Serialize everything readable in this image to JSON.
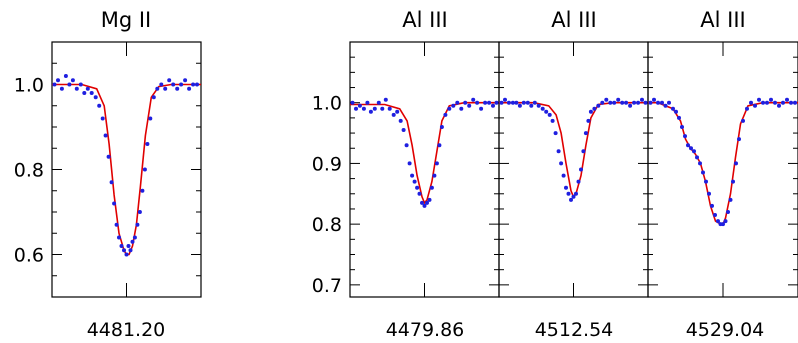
{
  "chart_data": [
    {
      "type": "line",
      "title": "Mg  II",
      "xlabel": "4481.20",
      "ylim": [
        0.5,
        1.1
      ],
      "yticks": [
        0.6,
        0.8,
        1.0
      ],
      "ytick_labels": [
        "0.6",
        "0.8",
        "1.0"
      ],
      "xrange": [
        -1.5,
        1.5
      ],
      "series": [
        {
          "role": "model",
          "color": "#e00000",
          "x": [
            -1.5,
            -0.9,
            -0.6,
            -0.45,
            -0.35,
            -0.25,
            -0.15,
            -0.05,
            0.0,
            0.05,
            0.12,
            0.2,
            0.28,
            0.38,
            0.5,
            0.65,
            0.9,
            1.5
          ],
          "y": [
            1.0,
            1.0,
            0.99,
            0.95,
            0.86,
            0.74,
            0.65,
            0.61,
            0.6,
            0.6,
            0.62,
            0.67,
            0.76,
            0.88,
            0.97,
            0.995,
            1.0,
            1.0
          ]
        },
        {
          "role": "data",
          "color": "#1f1fe0",
          "x": [
            -1.45,
            -1.38,
            -1.3,
            -1.22,
            -1.15,
            -1.08,
            -1.0,
            -0.92,
            -0.85,
            -0.78,
            -0.7,
            -0.62,
            -0.55,
            -0.48,
            -0.42,
            -0.36,
            -0.3,
            -0.25,
            -0.2,
            -0.15,
            -0.1,
            -0.05,
            0.0,
            0.04,
            0.08,
            0.12,
            0.17,
            0.22,
            0.27,
            0.32,
            0.37,
            0.42,
            0.48,
            0.55,
            0.62,
            0.7,
            0.78,
            0.86,
            0.94,
            1.02,
            1.1,
            1.18,
            1.26,
            1.34,
            1.42
          ],
          "y": [
            1.0,
            1.01,
            0.99,
            1.02,
            1.0,
            1.01,
            0.99,
            1.0,
            0.98,
            0.99,
            0.98,
            0.97,
            0.95,
            0.92,
            0.88,
            0.83,
            0.77,
            0.72,
            0.67,
            0.64,
            0.62,
            0.61,
            0.6,
            0.62,
            0.61,
            0.63,
            0.64,
            0.67,
            0.7,
            0.75,
            0.8,
            0.86,
            0.92,
            0.97,
            0.99,
            1.0,
            0.99,
            1.01,
            1.0,
            0.99,
            1.0,
            1.01,
            0.99,
            1.0,
            1.0
          ]
        }
      ]
    },
    {
      "type": "line",
      "title": "Al  III",
      "xlabel": "4479.86",
      "ylim": [
        0.68,
        1.1
      ],
      "yticks": [
        0.7,
        0.8,
        0.9,
        1.0
      ],
      "ytick_labels": [
        "0.7",
        "0.8",
        "0.9",
        "1.0"
      ],
      "xrange": [
        -1.5,
        1.5
      ],
      "series": [
        {
          "role": "model",
          "color": "#e00000",
          "x": [
            -1.5,
            -0.8,
            -0.5,
            -0.35,
            -0.25,
            -0.15,
            -0.05,
            0.0,
            0.05,
            0.15,
            0.25,
            0.35,
            0.5,
            0.8,
            1.5
          ],
          "y": [
            0.997,
            0.997,
            0.99,
            0.97,
            0.93,
            0.88,
            0.845,
            0.835,
            0.84,
            0.87,
            0.92,
            0.97,
            0.995,
            1.0,
            1.0
          ]
        },
        {
          "role": "data",
          "color": "#1f1fe0",
          "x": [
            -1.45,
            -1.38,
            -1.3,
            -1.22,
            -1.15,
            -1.08,
            -1.0,
            -0.92,
            -0.85,
            -0.78,
            -0.7,
            -0.62,
            -0.55,
            -0.48,
            -0.42,
            -0.36,
            -0.3,
            -0.25,
            -0.2,
            -0.15,
            -0.1,
            -0.05,
            0.0,
            0.05,
            0.1,
            0.15,
            0.2,
            0.25,
            0.3,
            0.35,
            0.42,
            0.5,
            0.58,
            0.66,
            0.74,
            0.82,
            0.9,
            0.98,
            1.06,
            1.14,
            1.22,
            1.3,
            1.38,
            1.45
          ],
          "y": [
            1.0,
            0.99,
            0.995,
            0.99,
            1.0,
            0.985,
            0.99,
            1.0,
            0.99,
            1.005,
            0.99,
            0.98,
            0.985,
            0.97,
            0.955,
            0.93,
            0.9,
            0.88,
            0.87,
            0.86,
            0.85,
            0.835,
            0.83,
            0.835,
            0.84,
            0.86,
            0.88,
            0.9,
            0.93,
            0.96,
            0.98,
            0.99,
            0.995,
            1.0,
            0.99,
            1.0,
            0.995,
            1.005,
            1.0,
            0.99,
            1.0,
            1.0,
            0.995,
            1.0
          ]
        }
      ]
    },
    {
      "type": "line",
      "title": "Al  III",
      "xlabel": "4512.54",
      "ylim": [
        0.68,
        1.1
      ],
      "xrange": [
        -1.5,
        1.5
      ],
      "series": [
        {
          "role": "model",
          "color": "#e00000",
          "x": [
            -1.5,
            -0.8,
            -0.5,
            -0.35,
            -0.25,
            -0.15,
            -0.05,
            0.0,
            0.05,
            0.15,
            0.25,
            0.35,
            0.5,
            0.8,
            1.5
          ],
          "y": [
            1.0,
            1.0,
            0.995,
            0.98,
            0.95,
            0.9,
            0.855,
            0.845,
            0.85,
            0.88,
            0.93,
            0.975,
            0.997,
            1.0,
            1.0
          ]
        },
        {
          "role": "data",
          "color": "#1f1fe0",
          "x": [
            -1.45,
            -1.38,
            -1.3,
            -1.22,
            -1.15,
            -1.08,
            -1.0,
            -0.92,
            -0.85,
            -0.78,
            -0.7,
            -0.62,
            -0.55,
            -0.48,
            -0.42,
            -0.36,
            -0.3,
            -0.25,
            -0.2,
            -0.15,
            -0.1,
            -0.05,
            0.0,
            0.05,
            0.1,
            0.15,
            0.2,
            0.25,
            0.3,
            0.35,
            0.42,
            0.5,
            0.58,
            0.66,
            0.74,
            0.82,
            0.9,
            0.98,
            1.06,
            1.14,
            1.22,
            1.3,
            1.38,
            1.45
          ],
          "y": [
            1.0,
            1.005,
            1.0,
            1.0,
            1.0,
            0.995,
            1.0,
            1.0,
            0.995,
            1.0,
            0.995,
            0.99,
            0.985,
            0.98,
            0.97,
            0.95,
            0.92,
            0.9,
            0.88,
            0.86,
            0.85,
            0.84,
            0.845,
            0.85,
            0.87,
            0.89,
            0.92,
            0.95,
            0.97,
            0.985,
            0.99,
            0.995,
            1.0,
            1.005,
            1.0,
            1.0,
            1.005,
            1.0,
            1.0,
            0.995,
            1.0,
            1.0,
            1.005,
            1.0
          ]
        }
      ]
    },
    {
      "type": "line",
      "title": "Al  III",
      "xlabel": "4529.04",
      "ylim": [
        0.68,
        1.1
      ],
      "xrange": [
        -1.5,
        1.5
      ],
      "series": [
        {
          "role": "model",
          "color": "#e00000",
          "x": [
            -1.5,
            -1.3,
            -1.0,
            -0.85,
            -0.75,
            -0.65,
            -0.55,
            -0.45,
            -0.35,
            -0.25,
            -0.15,
            -0.05,
            0.0,
            0.05,
            0.15,
            0.25,
            0.35,
            0.5,
            0.8,
            1.5
          ],
          "y": [
            1.0,
            1.0,
            0.99,
            0.97,
            0.94,
            0.925,
            0.915,
            0.9,
            0.87,
            0.83,
            0.805,
            0.8,
            0.8,
            0.81,
            0.85,
            0.91,
            0.965,
            0.995,
            1.0,
            1.0
          ]
        },
        {
          "role": "data",
          "color": "#1f1fe0",
          "x": [
            -1.45,
            -1.38,
            -1.3,
            -1.22,
            -1.15,
            -1.08,
            -1.0,
            -0.94,
            -0.88,
            -0.82,
            -0.76,
            -0.7,
            -0.64,
            -0.58,
            -0.52,
            -0.46,
            -0.4,
            -0.34,
            -0.28,
            -0.22,
            -0.16,
            -0.1,
            -0.05,
            0.0,
            0.05,
            0.1,
            0.15,
            0.2,
            0.26,
            0.32,
            0.4,
            0.48,
            0.56,
            0.64,
            0.72,
            0.8,
            0.88,
            0.96,
            1.04,
            1.12,
            1.2,
            1.28,
            1.36,
            1.44
          ],
          "y": [
            1.0,
            1.005,
            1.0,
            1.0,
            0.995,
            1.0,
            0.99,
            0.985,
            0.975,
            0.96,
            0.945,
            0.93,
            0.925,
            0.92,
            0.91,
            0.9,
            0.885,
            0.87,
            0.85,
            0.83,
            0.815,
            0.805,
            0.8,
            0.8,
            0.805,
            0.82,
            0.84,
            0.87,
            0.9,
            0.94,
            0.97,
            0.99,
            1.0,
            0.995,
            1.005,
            1.0,
            1.0,
            1.005,
            1.0,
            0.995,
            1.0,
            1.005,
            1.0,
            1.0
          ]
        }
      ]
    }
  ]
}
